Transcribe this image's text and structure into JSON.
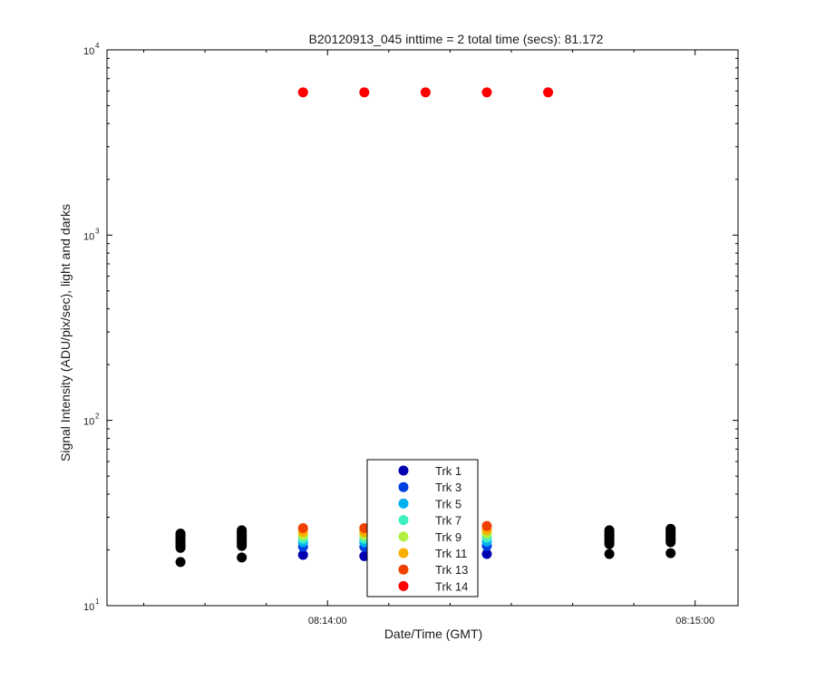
{
  "chart_data": {
    "type": "scatter",
    "title": "B20120913_045 inttime = 2 total time (secs): 81.172",
    "xlabel": "Date/Time (GMT)",
    "ylabel": "Signal Intensity (ADU/pix/sec), light and darks",
    "y_scale": "log",
    "ylim": [
      10,
      10000
    ],
    "xlim": [
      "08:13:24",
      "08:15:07"
    ],
    "x_ticks": [
      "08:14:00",
      "08:15:00"
    ],
    "y_ticks": [
      {
        "base": "10",
        "exp": "1",
        "value": 10
      },
      {
        "base": "10",
        "exp": "2",
        "value": 100
      },
      {
        "base": "10",
        "exp": "3",
        "value": 1000
      },
      {
        "base": "10",
        "exp": "4",
        "value": 10000
      }
    ],
    "grid": false,
    "legend_position": "bottom-center",
    "x_seconds": [
      36,
      46,
      56,
      66,
      76,
      86,
      96
    ],
    "series": [
      {
        "name": "Trk 1",
        "color": "#0000b0",
        "x_index": [
          2,
          3,
          4,
          5
        ],
        "values": [
          18.8,
          18.5,
          19.5,
          19.0
        ]
      },
      {
        "name": "Trk 3",
        "color": "#0040e0",
        "x_index": [
          2,
          3,
          4,
          5
        ],
        "values": [
          20.8,
          20.8,
          21.5,
          21.0
        ]
      },
      {
        "name": "Trk 5",
        "color": "#00b0f0",
        "x_index": [
          2,
          3,
          4,
          5
        ],
        "values": [
          22.0,
          22.0,
          22.5,
          22.2
        ]
      },
      {
        "name": "Trk 7",
        "color": "#40f0c0",
        "x_index": [
          2,
          3,
          4,
          5
        ],
        "values": [
          23.0,
          23.0,
          23.5,
          23.3
        ]
      },
      {
        "name": "Trk 9",
        "color": "#b0f040",
        "x_index": [
          2,
          3,
          4,
          5
        ],
        "values": [
          24.0,
          24.0,
          24.5,
          24.5
        ]
      },
      {
        "name": "Trk 11",
        "color": "#f8b000",
        "x_index": [
          2,
          3,
          4,
          5
        ],
        "values": [
          25.0,
          25.0,
          25.5,
          25.6
        ]
      },
      {
        "name": "Trk 13",
        "color": "#f04000",
        "x_index": [
          2,
          3,
          4,
          5
        ],
        "values": [
          26.2,
          26.2,
          26.5,
          26.9
        ]
      },
      {
        "name": "Trk 14",
        "color": "#ff0000",
        "x_index": [
          2,
          3,
          4,
          5,
          6
        ],
        "values": [
          5900,
          5900,
          5900,
          5900,
          5900
        ]
      }
    ],
    "darks": {
      "color": "#000000",
      "x_index": [
        0,
        1,
        7,
        8
      ],
      "stacks": [
        [
          17.2,
          20.5,
          21.0,
          21.5,
          22.0,
          22.5,
          23.0,
          23.5,
          24.0,
          24.5
        ],
        [
          18.2,
          21.0,
          21.5,
          22.0,
          22.5,
          23.0,
          23.5,
          24.0,
          24.5,
          25.0,
          25.5
        ],
        [
          19.0,
          21.5,
          22.0,
          22.5,
          23.0,
          23.5,
          24.0,
          24.5,
          25.0,
          25.5
        ],
        [
          19.2,
          22.0,
          22.5,
          23.0,
          23.5,
          24.0,
          24.5,
          25.0,
          25.5,
          26.0
        ]
      ],
      "x_seconds": [
        26,
        36,
        86,
        96
      ]
    }
  }
}
